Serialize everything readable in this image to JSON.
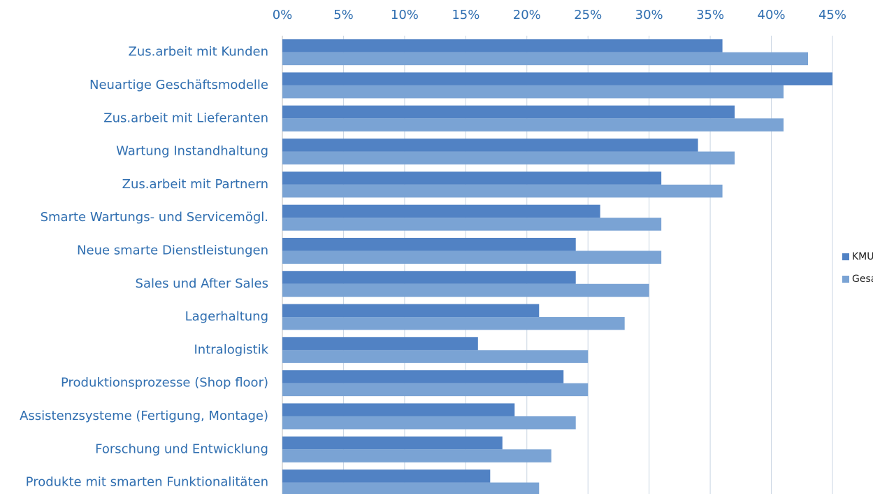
{
  "chart_data": {
    "type": "barh",
    "categories": [
      "Zus.arbeit mit Kunden",
      "Neuartige Geschäftsmodelle",
      "Zus.arbeit mit Lieferanten",
      "Wartung Instandhaltung",
      "Zus.arbeit mit Partnern",
      "Smarte Wartungs- und Servicemögl.",
      "Neue smarte Dienstleistungen",
      "Sales und After Sales",
      "Lagerhaltung",
      "Intralogistik",
      "Produktionsprozesse (Shop floor)",
      "Assistenzsysteme (Fertigung, Montage)",
      "Forschung und Entwicklung",
      "Produkte mit smarten Funktionalitäten"
    ],
    "series": [
      {
        "name": "KMU",
        "color": "#5182c4",
        "values": [
          36,
          45,
          37,
          34,
          31,
          26,
          24,
          24,
          21,
          16,
          23,
          19,
          18,
          17
        ]
      },
      {
        "name": "Gesamt",
        "color": "#7aa3d4",
        "values": [
          43,
          41,
          41,
          37,
          36,
          31,
          31,
          30,
          28,
          25,
          25,
          24,
          22,
          21
        ]
      }
    ],
    "xlim": [
      0,
      45
    ],
    "xticks": [
      {
        "value": 0,
        "label": "0%"
      },
      {
        "value": 5,
        "label": "5%"
      },
      {
        "value": 10,
        "label": "10%"
      },
      {
        "value": 15,
        "label": "15%"
      },
      {
        "value": 20,
        "label": "20%"
      },
      {
        "value": 25,
        "label": "25%"
      },
      {
        "value": 30,
        "label": "30%"
      },
      {
        "value": 35,
        "label": "35%"
      },
      {
        "value": 40,
        "label": "40%"
      },
      {
        "value": 45,
        "label": "45%"
      }
    ],
    "grid": true,
    "legend": "right"
  }
}
